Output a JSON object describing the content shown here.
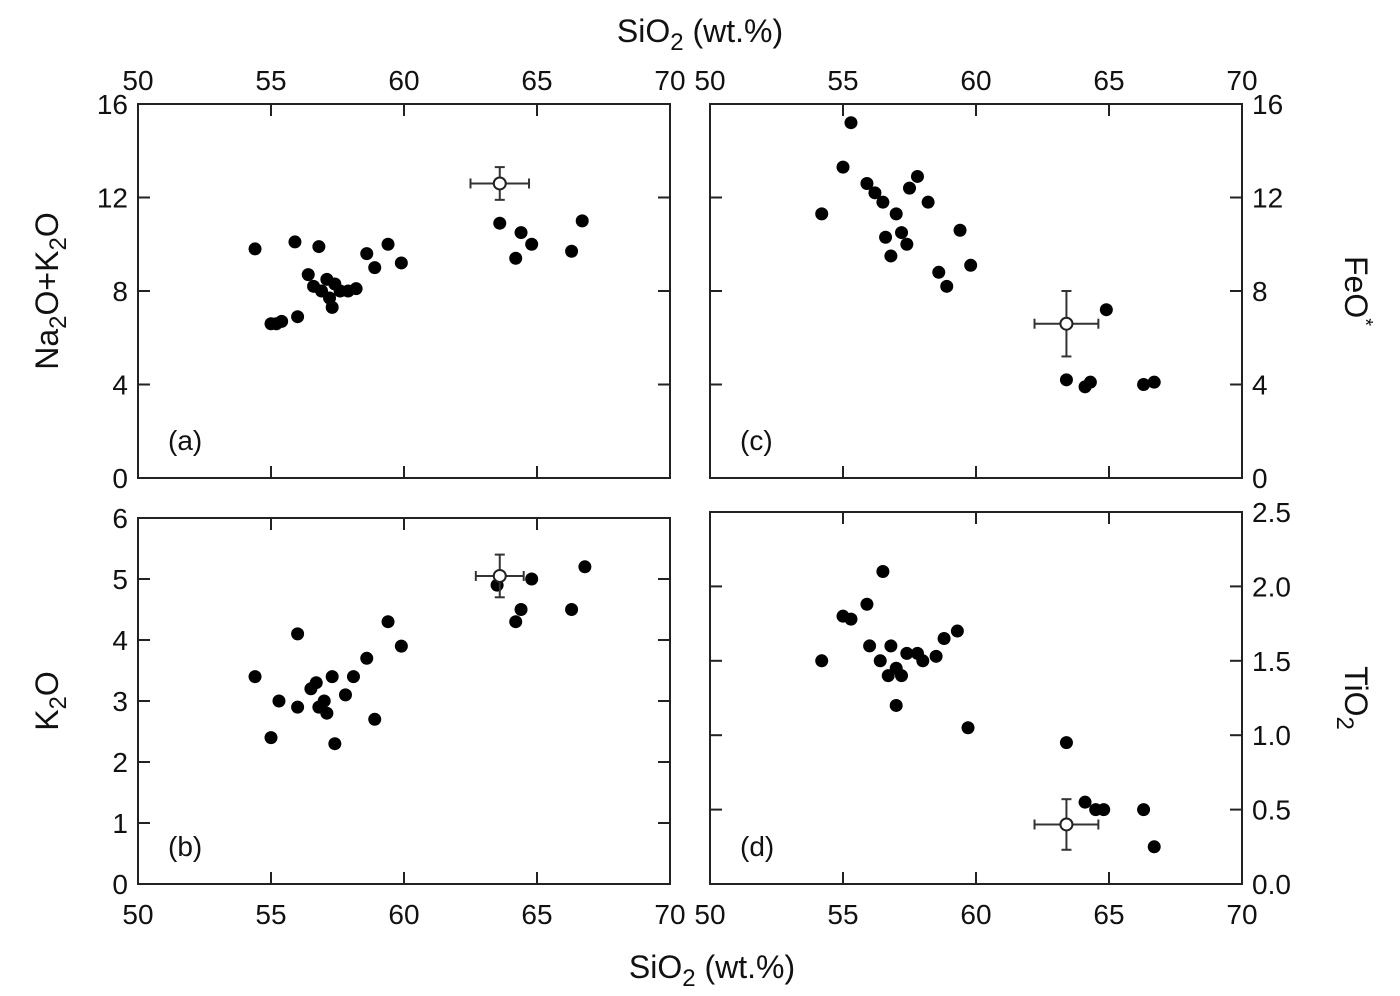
{
  "figure": {
    "top_xlabel_base": "SiO",
    "top_xlabel_sub": "2",
    "top_xlabel_rest": " (wt.%)",
    "bottom_xlabel_base": "SiO",
    "bottom_xlabel_sub": "2",
    "bottom_xlabel_rest": " (wt.%)"
  },
  "chart_data": [
    {
      "id": "a",
      "type": "scatter",
      "panel_label": "(a)",
      "ylabel_parts": [
        [
          "Na",
          ""
        ],
        [
          "2",
          "sub"
        ],
        [
          "O+K",
          ""
        ],
        [
          "2",
          "sub"
        ],
        [
          "O",
          ""
        ]
      ],
      "ylabel_side": "left",
      "xlim": [
        50,
        70
      ],
      "ylim": [
        0,
        16
      ],
      "x_ticks": [
        50,
        55,
        60,
        65,
        70
      ],
      "y_ticks": [
        0,
        4,
        8,
        12,
        16
      ],
      "y_tick_labels": [
        "0",
        "4",
        "8",
        "12",
        "16"
      ],
      "x_tick_labels_top": [
        "50",
        "55",
        "60",
        "65",
        "70"
      ],
      "points": [
        [
          54.4,
          9.8
        ],
        [
          55.0,
          6.6
        ],
        [
          55.2,
          6.6
        ],
        [
          55.4,
          6.7
        ],
        [
          55.9,
          10.1
        ],
        [
          56.0,
          6.9
        ],
        [
          56.4,
          8.7
        ],
        [
          56.6,
          8.2
        ],
        [
          56.8,
          9.9
        ],
        [
          56.9,
          8.0
        ],
        [
          57.1,
          8.5
        ],
        [
          57.2,
          7.7
        ],
        [
          57.3,
          7.3
        ],
        [
          57.4,
          8.3
        ],
        [
          57.6,
          8.0
        ],
        [
          57.9,
          8.0
        ],
        [
          58.2,
          8.1
        ],
        [
          58.6,
          9.6
        ],
        [
          58.9,
          9.0
        ],
        [
          59.4,
          10.0
        ],
        [
          59.9,
          9.2
        ],
        [
          63.6,
          10.9
        ],
        [
          64.2,
          9.4
        ],
        [
          64.4,
          10.5
        ],
        [
          64.8,
          10.0
        ],
        [
          66.3,
          9.7
        ],
        [
          66.7,
          11.0
        ]
      ],
      "reference": {
        "x": 63.6,
        "y": 12.6,
        "xerr": 1.1,
        "yerr": 0.7
      }
    },
    {
      "id": "b",
      "type": "scatter",
      "panel_label": "(b)",
      "ylabel_parts": [
        [
          "K",
          ""
        ],
        [
          "2",
          "sub"
        ],
        [
          "O",
          ""
        ]
      ],
      "ylabel_side": "left",
      "xlim": [
        50,
        70
      ],
      "ylim": [
        0,
        6
      ],
      "x_ticks": [
        50,
        55,
        60,
        65,
        70
      ],
      "y_ticks": [
        0,
        1,
        2,
        3,
        4,
        5,
        6
      ],
      "y_tick_labels": [
        "0",
        "1",
        "2",
        "3",
        "4",
        "5",
        "6"
      ],
      "x_tick_labels_bottom": [
        "50",
        "55",
        "60",
        "65",
        "70"
      ],
      "points": [
        [
          54.4,
          3.4
        ],
        [
          55.0,
          2.4
        ],
        [
          55.3,
          3.0
        ],
        [
          56.0,
          4.1
        ],
        [
          56.0,
          2.9
        ],
        [
          56.5,
          3.2
        ],
        [
          56.7,
          3.3
        ],
        [
          56.8,
          2.9
        ],
        [
          57.0,
          3.0
        ],
        [
          57.1,
          2.8
        ],
        [
          57.3,
          3.4
        ],
        [
          57.4,
          2.3
        ],
        [
          57.8,
          3.1
        ],
        [
          58.1,
          3.4
        ],
        [
          58.6,
          3.7
        ],
        [
          58.9,
          2.7
        ],
        [
          59.4,
          4.3
        ],
        [
          59.9,
          3.9
        ],
        [
          63.5,
          4.9
        ],
        [
          64.2,
          4.3
        ],
        [
          64.4,
          4.5
        ],
        [
          64.8,
          5.0
        ],
        [
          66.3,
          4.5
        ],
        [
          66.8,
          5.2
        ]
      ],
      "reference": {
        "x": 63.6,
        "y": 5.05,
        "xerr": 0.9,
        "yerr": 0.35
      }
    },
    {
      "id": "c",
      "type": "scatter",
      "panel_label": "(c)",
      "ylabel_parts": [
        [
          "FeO",
          ""
        ],
        [
          "*",
          "sup"
        ]
      ],
      "ylabel_side": "right",
      "xlim": [
        50,
        70
      ],
      "ylim": [
        0,
        16
      ],
      "x_ticks": [
        50,
        55,
        60,
        65,
        70
      ],
      "y_ticks": [
        0,
        4,
        8,
        12,
        16
      ],
      "y_tick_labels": [
        "0",
        "4",
        "8",
        "12",
        "16"
      ],
      "x_tick_labels_top": [
        "50",
        "55",
        "60",
        "65",
        "70"
      ],
      "points": [
        [
          54.2,
          11.3
        ],
        [
          55.0,
          13.3
        ],
        [
          55.3,
          15.2
        ],
        [
          55.9,
          12.6
        ],
        [
          56.2,
          12.2
        ],
        [
          56.5,
          11.8
        ],
        [
          56.6,
          10.3
        ],
        [
          56.8,
          9.5
        ],
        [
          57.0,
          11.3
        ],
        [
          57.2,
          10.5
        ],
        [
          57.4,
          10.0
        ],
        [
          57.5,
          12.4
        ],
        [
          57.8,
          12.9
        ],
        [
          58.2,
          11.8
        ],
        [
          58.6,
          8.8
        ],
        [
          58.9,
          8.2
        ],
        [
          59.4,
          10.6
        ],
        [
          59.8,
          9.1
        ],
        [
          63.4,
          4.2
        ],
        [
          64.1,
          3.9
        ],
        [
          64.3,
          4.1
        ],
        [
          64.9,
          7.2
        ],
        [
          66.3,
          4.0
        ],
        [
          66.7,
          4.1
        ]
      ],
      "reference": {
        "x": 63.4,
        "y": 6.6,
        "xerr": 1.2,
        "yerr": 1.4
      }
    },
    {
      "id": "d",
      "type": "scatter",
      "panel_label": "(d)",
      "ylabel_parts": [
        [
          "TiO",
          ""
        ],
        [
          "2",
          "sub"
        ]
      ],
      "ylabel_side": "right",
      "xlim": [
        50,
        70
      ],
      "ylim": [
        0,
        2.5
      ],
      "x_ticks": [
        50,
        55,
        60,
        65,
        70
      ],
      "y_ticks": [
        0,
        0.5,
        1.0,
        1.5,
        2.0,
        2.5
      ],
      "y_tick_labels": [
        "0.0",
        "0.5",
        "1.0",
        "1.5",
        "2.0",
        "2.5"
      ],
      "x_tick_labels_bottom": [
        "50",
        "55",
        "60",
        "65",
        "70"
      ],
      "points": [
        [
          54.2,
          1.5
        ],
        [
          55.0,
          1.8
        ],
        [
          55.3,
          1.78
        ],
        [
          55.9,
          1.88
        ],
        [
          56.0,
          1.6
        ],
        [
          56.4,
          1.5
        ],
        [
          56.5,
          2.1
        ],
        [
          56.7,
          1.4
        ],
        [
          56.8,
          1.6
        ],
        [
          57.0,
          1.45
        ],
        [
          57.0,
          1.2
        ],
        [
          57.2,
          1.4
        ],
        [
          57.4,
          1.55
        ],
        [
          57.8,
          1.55
        ],
        [
          58.0,
          1.5
        ],
        [
          58.5,
          1.53
        ],
        [
          58.8,
          1.65
        ],
        [
          59.3,
          1.7
        ],
        [
          59.7,
          1.05
        ],
        [
          63.4,
          0.95
        ],
        [
          64.1,
          0.55
        ],
        [
          64.5,
          0.5
        ],
        [
          64.8,
          0.5
        ],
        [
          66.3,
          0.5
        ],
        [
          66.7,
          0.25
        ]
      ],
      "reference": {
        "x": 63.4,
        "y": 0.4,
        "xerr": 1.2,
        "yerr": 0.17
      }
    }
  ]
}
